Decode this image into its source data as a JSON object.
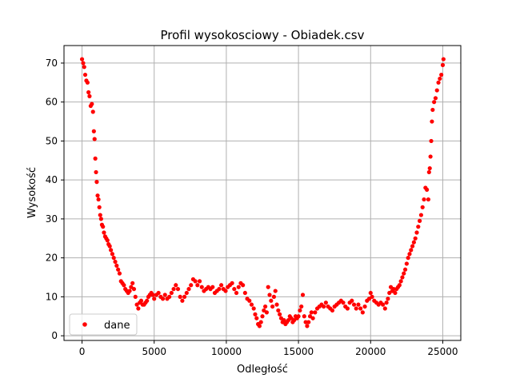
{
  "chart_data": {
    "type": "scatter",
    "title": "Profil wysokosciowy - Obiadek.csv",
    "xlabel": "Odległość",
    "ylabel": "Wysokość",
    "xlim": [
      -1250,
      26250
    ],
    "ylim": [
      -1.2,
      74.5
    ],
    "xticks": [
      0,
      5000,
      10000,
      15000,
      20000,
      25000
    ],
    "yticks": [
      0,
      10,
      20,
      30,
      40,
      50,
      60,
      70
    ],
    "grid": true,
    "legend_position": "lower-left",
    "colors": {
      "series": "#ff0000",
      "grid": "#b0b0b0",
      "frame": "#000000"
    },
    "series": [
      {
        "name": "dane",
        "marker": "circle",
        "points": [
          [
            0,
            71
          ],
          [
            80,
            70
          ],
          [
            150,
            69
          ],
          [
            220,
            67
          ],
          [
            300,
            65.5
          ],
          [
            380,
            65
          ],
          [
            450,
            62.5
          ],
          [
            520,
            61.5
          ],
          [
            600,
            59
          ],
          [
            680,
            59.5
          ],
          [
            760,
            57.5
          ],
          [
            820,
            52.5
          ],
          [
            870,
            50.5
          ],
          [
            920,
            45.5
          ],
          [
            970,
            42
          ],
          [
            1020,
            39.5
          ],
          [
            1080,
            36
          ],
          [
            1140,
            35
          ],
          [
            1200,
            33
          ],
          [
            1260,
            31
          ],
          [
            1320,
            30
          ],
          [
            1380,
            28.5
          ],
          [
            1450,
            28
          ],
          [
            1520,
            26.5
          ],
          [
            1600,
            25.5
          ],
          [
            1680,
            25
          ],
          [
            1760,
            24.5
          ],
          [
            1840,
            23.5
          ],
          [
            1920,
            23
          ],
          [
            2000,
            22
          ],
          [
            2100,
            21
          ],
          [
            2200,
            20
          ],
          [
            2300,
            19
          ],
          [
            2400,
            18
          ],
          [
            2500,
            17
          ],
          [
            2600,
            16
          ],
          [
            2700,
            14
          ],
          [
            2800,
            13.5
          ],
          [
            2900,
            13
          ],
          [
            3000,
            12
          ],
          [
            3100,
            11.5
          ],
          [
            3200,
            11
          ],
          [
            3300,
            11.5
          ],
          [
            3400,
            12.5
          ],
          [
            3500,
            13.5
          ],
          [
            3600,
            12
          ],
          [
            3700,
            10
          ],
          [
            3800,
            8
          ],
          [
            3900,
            7
          ],
          [
            4000,
            8.5
          ],
          [
            4100,
            9
          ],
          [
            4200,
            8
          ],
          [
            4300,
            8
          ],
          [
            4400,
            8.5
          ],
          [
            4500,
            9
          ],
          [
            4600,
            10
          ],
          [
            4700,
            10.5
          ],
          [
            4800,
            11
          ],
          [
            4900,
            10.5
          ],
          [
            5000,
            9.5
          ],
          [
            5150,
            10.5
          ],
          [
            5300,
            11
          ],
          [
            5450,
            10
          ],
          [
            5600,
            9.5
          ],
          [
            5750,
            10.5
          ],
          [
            5900,
            9.5
          ],
          [
            6050,
            10
          ],
          [
            6200,
            11
          ],
          [
            6350,
            12
          ],
          [
            6500,
            13
          ],
          [
            6650,
            12
          ],
          [
            6800,
            10
          ],
          [
            6950,
            9
          ],
          [
            7100,
            10
          ],
          [
            7250,
            11
          ],
          [
            7400,
            12
          ],
          [
            7550,
            13
          ],
          [
            7700,
            14.5
          ],
          [
            7850,
            14
          ],
          [
            8000,
            13
          ],
          [
            8150,
            14
          ],
          [
            8300,
            12.5
          ],
          [
            8450,
            11.5
          ],
          [
            8600,
            12
          ],
          [
            8750,
            12.5
          ],
          [
            8900,
            12
          ],
          [
            9050,
            12.5
          ],
          [
            9200,
            11
          ],
          [
            9350,
            11.5
          ],
          [
            9500,
            12
          ],
          [
            9650,
            13
          ],
          [
            9800,
            12
          ],
          [
            9950,
            11.5
          ],
          [
            10100,
            12.5
          ],
          [
            10250,
            13
          ],
          [
            10400,
            13.5
          ],
          [
            10550,
            12
          ],
          [
            10700,
            11
          ],
          [
            10850,
            12.5
          ],
          [
            11000,
            13.5
          ],
          [
            11150,
            13
          ],
          [
            11300,
            11
          ],
          [
            11450,
            9.5
          ],
          [
            11600,
            9
          ],
          [
            11750,
            8
          ],
          [
            11900,
            7
          ],
          [
            12000,
            5.5
          ],
          [
            12100,
            4.5
          ],
          [
            12200,
            3
          ],
          [
            12300,
            2.5
          ],
          [
            12400,
            3.5
          ],
          [
            12500,
            5
          ],
          [
            12600,
            6.5
          ],
          [
            12700,
            7.5
          ],
          [
            12800,
            6
          ],
          [
            12900,
            12.5
          ],
          [
            13000,
            10.5
          ],
          [
            13100,
            9
          ],
          [
            13200,
            7.5
          ],
          [
            13300,
            10
          ],
          [
            13400,
            11.5
          ],
          [
            13500,
            8
          ],
          [
            13600,
            6.5
          ],
          [
            13700,
            5.5
          ],
          [
            13800,
            4.5
          ],
          [
            13900,
            3.5
          ],
          [
            14000,
            4
          ],
          [
            14100,
            3
          ],
          [
            14200,
            3.5
          ],
          [
            14300,
            4
          ],
          [
            14400,
            5
          ],
          [
            14500,
            4.5
          ],
          [
            14600,
            3.5
          ],
          [
            14700,
            4
          ],
          [
            14800,
            5
          ],
          [
            14900,
            4.5
          ],
          [
            15000,
            5
          ],
          [
            15100,
            6.5
          ],
          [
            15200,
            7.5
          ],
          [
            15300,
            10.5
          ],
          [
            15400,
            5
          ],
          [
            15500,
            3.5
          ],
          [
            15600,
            2.5
          ],
          [
            15700,
            3.5
          ],
          [
            15800,
            5
          ],
          [
            15900,
            6
          ],
          [
            16000,
            4.5
          ],
          [
            16150,
            6
          ],
          [
            16300,
            7
          ],
          [
            16450,
            7.5
          ],
          [
            16600,
            8
          ],
          [
            16750,
            7.5
          ],
          [
            16900,
            8.5
          ],
          [
            17050,
            7.5
          ],
          [
            17200,
            7
          ],
          [
            17350,
            6.5
          ],
          [
            17500,
            7.5
          ],
          [
            17650,
            8
          ],
          [
            17800,
            8.5
          ],
          [
            17950,
            9
          ],
          [
            18100,
            8.5
          ],
          [
            18250,
            7.5
          ],
          [
            18400,
            7
          ],
          [
            18550,
            8.5
          ],
          [
            18700,
            9
          ],
          [
            18850,
            8
          ],
          [
            19000,
            7
          ],
          [
            19150,
            8
          ],
          [
            19300,
            7
          ],
          [
            19450,
            6
          ],
          [
            19600,
            7.5
          ],
          [
            19750,
            9
          ],
          [
            19900,
            9.5
          ],
          [
            20000,
            11
          ],
          [
            20100,
            10
          ],
          [
            20250,
            9
          ],
          [
            20400,
            8.5
          ],
          [
            20550,
            8
          ],
          [
            20700,
            8.5
          ],
          [
            20850,
            8
          ],
          [
            21000,
            7
          ],
          [
            21100,
            8.5
          ],
          [
            21200,
            9.5
          ],
          [
            21300,
            11
          ],
          [
            21400,
            12.5
          ],
          [
            21500,
            11.5
          ],
          [
            21600,
            12
          ],
          [
            21700,
            11
          ],
          [
            21800,
            12
          ],
          [
            21900,
            12.5
          ],
          [
            22000,
            13
          ],
          [
            22100,
            14
          ],
          [
            22200,
            15
          ],
          [
            22300,
            16
          ],
          [
            22400,
            17
          ],
          [
            22500,
            18.5
          ],
          [
            22600,
            20
          ],
          [
            22700,
            21
          ],
          [
            22800,
            22
          ],
          [
            22900,
            23
          ],
          [
            23000,
            24
          ],
          [
            23100,
            25
          ],
          [
            23200,
            26.5
          ],
          [
            23300,
            28
          ],
          [
            23400,
            29.5
          ],
          [
            23500,
            31
          ],
          [
            23600,
            33
          ],
          [
            23700,
            35
          ],
          [
            23800,
            38
          ],
          [
            23900,
            37.5
          ],
          [
            24000,
            35
          ],
          [
            24050,
            42
          ],
          [
            24100,
            43
          ],
          [
            24150,
            46
          ],
          [
            24200,
            50
          ],
          [
            24250,
            55
          ],
          [
            24300,
            58
          ],
          [
            24400,
            60
          ],
          [
            24500,
            61
          ],
          [
            24600,
            63
          ],
          [
            24700,
            65
          ],
          [
            24800,
            66
          ],
          [
            24900,
            67
          ],
          [
            25000,
            69.5
          ],
          [
            25050,
            71
          ]
        ]
      }
    ]
  }
}
